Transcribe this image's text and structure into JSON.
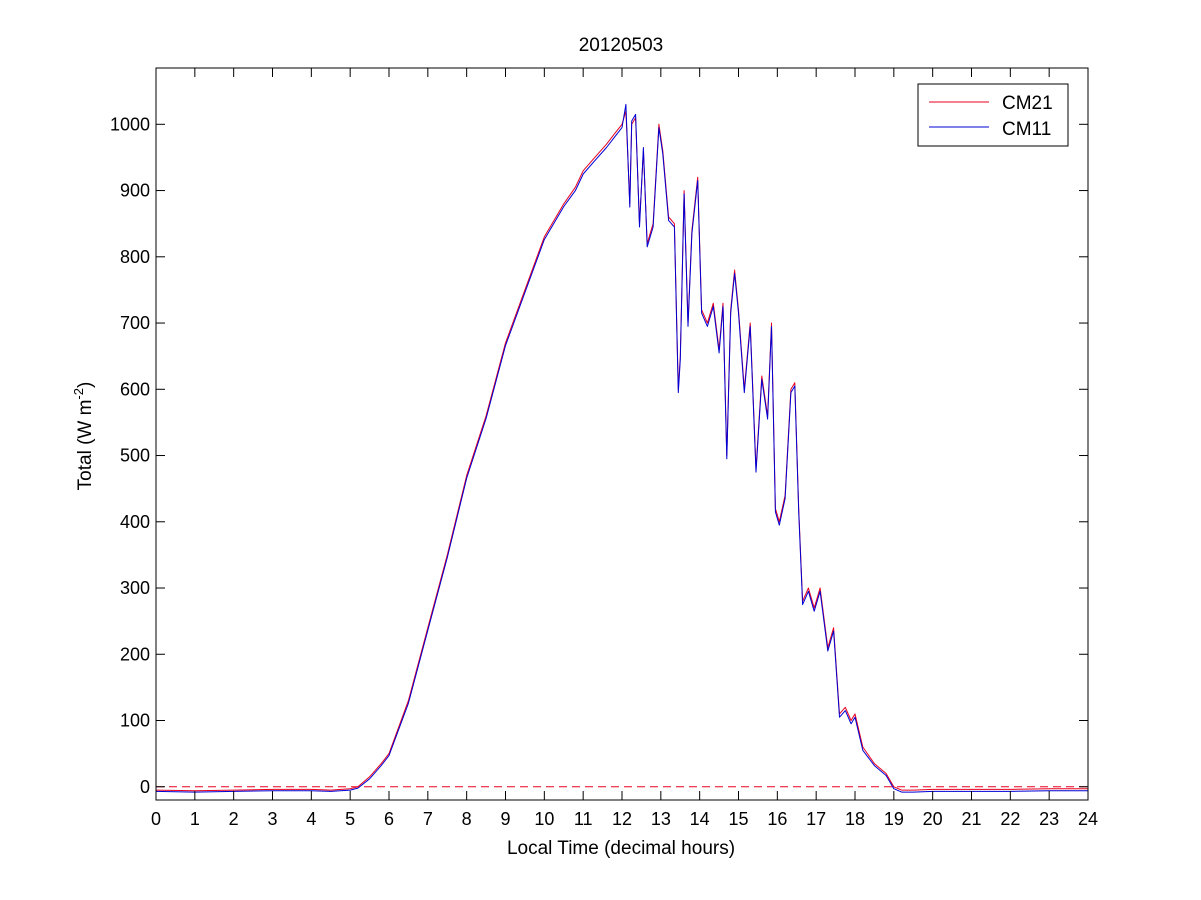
{
  "chart_data": {
    "type": "line",
    "title": "20120503",
    "xlabel": "Local Time (decimal hours)",
    "ylabel": {
      "prefix": "Total (W m",
      "sup": "-2",
      "suffix": ")"
    },
    "xlim": [
      0,
      24
    ],
    "ylim": [
      -20,
      1085
    ],
    "xticks": [
      0,
      1,
      2,
      3,
      4,
      5,
      6,
      7,
      8,
      9,
      10,
      11,
      12,
      13,
      14,
      15,
      16,
      17,
      18,
      19,
      20,
      21,
      22,
      23,
      24
    ],
    "yticks": [
      0,
      100,
      200,
      300,
      400,
      500,
      600,
      700,
      800,
      900,
      1000
    ],
    "grid": false,
    "legend_position": "top-right",
    "reference_line": {
      "y": 0,
      "style": "dashed",
      "color": "#e8001f"
    },
    "series": [
      {
        "name": "CM21",
        "color": "#e8001f",
        "x": [
          0,
          1,
          2,
          3,
          4,
          4.5,
          5,
          5.2,
          5.5,
          5.8,
          6,
          6.5,
          7,
          7.5,
          8,
          8.5,
          9,
          9.5,
          10,
          10.5,
          10.8,
          11,
          11.3,
          11.6,
          11.8,
          12,
          12.1,
          12.2,
          12.25,
          12.35,
          12.45,
          12.55,
          12.65,
          12.8,
          12.95,
          13.05,
          13.2,
          13.35,
          13.45,
          13.5,
          13.6,
          13.7,
          13.8,
          13.95,
          14.05,
          14.2,
          14.35,
          14.5,
          14.6,
          14.7,
          14.8,
          14.9,
          15,
          15.15,
          15.3,
          15.45,
          15.6,
          15.75,
          15.85,
          15.95,
          16.05,
          16.2,
          16.35,
          16.45,
          16.55,
          16.65,
          16.8,
          16.95,
          17.1,
          17.3,
          17.45,
          17.6,
          17.75,
          17.9,
          18,
          18.2,
          18.5,
          18.8,
          19,
          19.2,
          19.5,
          20,
          21,
          22,
          23,
          24
        ],
        "y": [
          -5,
          -6,
          -5,
          -4,
          -4,
          -5,
          -3,
          0,
          15,
          35,
          50,
          130,
          240,
          350,
          470,
          560,
          670,
          750,
          830,
          880,
          905,
          930,
          950,
          970,
          985,
          1000,
          1020,
          880,
          1000,
          1010,
          850,
          960,
          820,
          850,
          1000,
          960,
          860,
          850,
          600,
          650,
          900,
          700,
          840,
          920,
          720,
          700,
          730,
          660,
          730,
          500,
          720,
          780,
          720,
          600,
          700,
          480,
          620,
          560,
          700,
          420,
          400,
          440,
          600,
          610,
          420,
          280,
          300,
          270,
          300,
          210,
          240,
          110,
          120,
          100,
          110,
          60,
          35,
          20,
          0,
          -5,
          -5,
          -4,
          -4,
          -4,
          -3,
          -3
        ]
      },
      {
        "name": "CM11",
        "color": "#0000d4",
        "x": [
          0,
          1,
          2,
          3,
          4,
          4.5,
          5,
          5.2,
          5.5,
          5.8,
          6,
          6.5,
          7,
          7.5,
          8,
          8.5,
          9,
          9.5,
          10,
          10.5,
          10.8,
          11,
          11.3,
          11.6,
          11.8,
          12,
          12.1,
          12.2,
          12.25,
          12.35,
          12.45,
          12.55,
          12.65,
          12.8,
          12.95,
          13.05,
          13.2,
          13.35,
          13.45,
          13.5,
          13.6,
          13.7,
          13.8,
          13.95,
          14.05,
          14.2,
          14.35,
          14.5,
          14.6,
          14.7,
          14.8,
          14.9,
          15,
          15.15,
          15.3,
          15.45,
          15.6,
          15.75,
          15.85,
          15.95,
          16.05,
          16.2,
          16.35,
          16.45,
          16.55,
          16.65,
          16.8,
          16.95,
          17.1,
          17.3,
          17.45,
          17.6,
          17.75,
          17.9,
          18,
          18.2,
          18.5,
          18.8,
          19,
          19.2,
          19.5,
          20,
          21,
          22,
          23,
          24
        ],
        "y": [
          -7,
          -8,
          -7,
          -6,
          -6,
          -7,
          -5,
          -2,
          12,
          32,
          47,
          126,
          236,
          346,
          466,
          556,
          666,
          746,
          826,
          876,
          900,
          925,
          945,
          965,
          980,
          995,
          1030,
          875,
          1005,
          1015,
          845,
          965,
          815,
          845,
          995,
          955,
          855,
          845,
          595,
          645,
          895,
          695,
          835,
          915,
          715,
          695,
          725,
          655,
          725,
          495,
          715,
          775,
          715,
          595,
          695,
          475,
          615,
          555,
          695,
          415,
          395,
          435,
          595,
          605,
          415,
          275,
          295,
          265,
          295,
          205,
          235,
          105,
          115,
          95,
          105,
          55,
          32,
          17,
          -3,
          -8,
          -8,
          -7,
          -7,
          -7,
          -6,
          -6
        ]
      }
    ]
  }
}
